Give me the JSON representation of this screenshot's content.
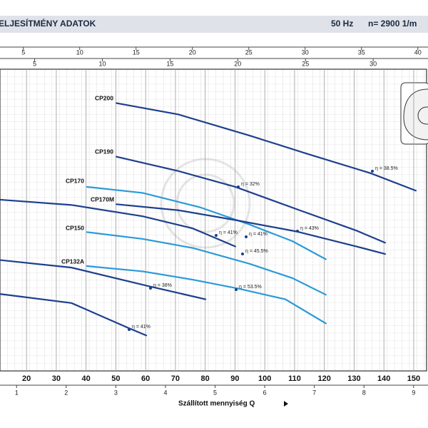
{
  "header": {
    "title": "ELJESÍTMÉNY ADATOK",
    "frequency": "50 Hz",
    "speed": "n= 2900  1/m"
  },
  "chart_data": {
    "type": "line",
    "xlabel": "Szállított mennyiség Q",
    "xlim": [
      11.1,
      154.8
    ],
    "xticks": [
      20,
      30,
      40,
      50,
      60,
      70,
      80,
      90,
      100,
      110,
      120,
      130,
      140,
      150
    ],
    "x2lim": [
      0.666,
      9.29
    ],
    "x2ticks": [
      1,
      2,
      3,
      4,
      5,
      6,
      7,
      8,
      9
    ],
    "x3lim": [
      2.93,
      40.9
    ],
    "x3ticks": [
      5,
      10,
      15,
      20,
      25,
      30,
      35,
      40
    ],
    "x4lim": [
      2.44,
      34.05
    ],
    "x4ticks": [
      5,
      10,
      15,
      20,
      25,
      30
    ],
    "ylim": [
      0,
      40
    ],
    "grid": true,
    "series": [
      {
        "name": "CP200",
        "color": "#1c3f8e",
        "x": [
          50.2,
          71.0,
          94.9,
          114.1,
          135.6,
          150.7
        ],
        "values": [
          35.5,
          34.0,
          31.2,
          28.8,
          26.2,
          23.9
        ]
      },
      {
        "name": "CP190",
        "color": "#1c3f8e",
        "x": [
          50.2,
          71.0,
          90.1,
          111.7,
          130.8,
          140.4
        ],
        "values": [
          28.4,
          26.5,
          24.4,
          21.3,
          18.6,
          17.0
        ]
      },
      {
        "name": "CP170",
        "color": "#2b9ad8",
        "x": [
          40.3,
          59.0,
          78.2,
          94.9,
          109.3,
          120.5
        ],
        "values": [
          24.4,
          23.6,
          21.7,
          19.4,
          17.2,
          14.8
        ]
      },
      {
        "name": "CP170M",
        "color": "#1c3f8e",
        "x": [
          50.2,
          71.0,
          90.1,
          110.5,
          130.8,
          140.4
        ],
        "values": [
          22.1,
          21.3,
          20.0,
          18.5,
          16.5,
          15.5
        ]
      },
      {
        "name": "CP150",
        "color": "#2b9ad8",
        "x": [
          40.3,
          59.0,
          75.8,
          94.9,
          109.3,
          120.5
        ],
        "values": [
          18.4,
          17.5,
          16.3,
          14.2,
          12.3,
          10.1
        ]
      },
      {
        "name": "CP132A",
        "color": "#2b9ad8",
        "x": [
          40.3,
          59.0,
          75.8,
          91.3,
          106.9,
          120.5
        ],
        "values": [
          13.9,
          13.2,
          12.1,
          10.9,
          9.5,
          6.3
        ]
      },
      {
        "color": "#1c3f8e",
        "x": [
          11.1,
          35.1,
          59.0,
          75.8,
          90.1
        ],
        "values": [
          22.7,
          22.0,
          20.5,
          18.9,
          16.5
        ]
      },
      {
        "color": "#1c3f8e",
        "x": [
          11.1,
          35.1,
          61.4,
          80.1
        ],
        "values": [
          14.7,
          13.7,
          11.2,
          9.5
        ]
      },
      {
        "color": "#1c3f8e",
        "x": [
          11.1,
          35.1,
          54.2,
          60.2
        ],
        "values": [
          10.2,
          9.0,
          5.7,
          4.7
        ]
      }
    ],
    "annotations": [
      "η = 38.5%",
      "η = 32%",
      "η = 43%",
      "η = 41%",
      "η = 41%",
      "η = 45.5%",
      "η = 38%",
      "η = 53.5%",
      "η = 41%"
    ]
  }
}
